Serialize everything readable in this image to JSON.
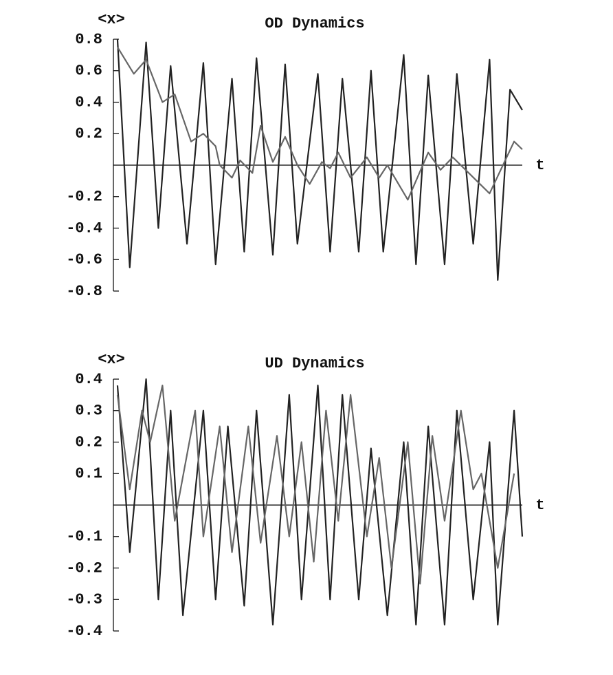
{
  "chart_data": [
    {
      "type": "line",
      "title": "OD Dynamics",
      "ylabel": "<x>",
      "xlabel": "t",
      "xlim": [
        0,
        100
      ],
      "ylim": [
        -0.8,
        0.8
      ],
      "yticks": [
        -0.8,
        -0.6,
        -0.4,
        -0.2,
        0.2,
        0.4,
        0.6,
        0.8
      ],
      "series": [
        {
          "color": "#222222",
          "x": [
            1,
            4,
            8,
            11,
            14,
            18,
            22,
            25,
            29,
            32,
            35,
            39,
            42,
            45,
            50,
            53,
            56,
            60,
            63,
            66,
            71,
            74,
            77,
            81,
            84,
            88,
            92,
            94,
            97,
            100
          ],
          "values": [
            0.8,
            -0.65,
            0.78,
            -0.4,
            0.63,
            -0.5,
            0.65,
            -0.63,
            0.55,
            -0.55,
            0.68,
            -0.57,
            0.64,
            -0.5,
            0.58,
            -0.55,
            0.55,
            -0.55,
            0.6,
            -0.55,
            0.7,
            -0.63,
            0.57,
            -0.63,
            0.58,
            -0.5,
            0.67,
            -0.73,
            0.48,
            0.35
          ]
        },
        {
          "color": "#666666",
          "x": [
            1,
            5,
            8,
            12,
            15,
            19,
            22,
            25,
            26,
            29,
            31,
            34,
            36,
            39,
            42,
            45,
            48,
            51,
            53,
            55,
            58,
            62,
            65,
            67,
            72,
            77,
            80,
            83,
            92,
            98,
            100
          ],
          "values": [
            0.75,
            0.58,
            0.67,
            0.4,
            0.45,
            0.15,
            0.2,
            0.12,
            0,
            -0.08,
            0.03,
            -0.05,
            0.25,
            0.02,
            0.18,
            0,
            -0.12,
            0.02,
            -0.02,
            0.08,
            -0.08,
            0.05,
            -0.08,
            0,
            -0.22,
            0.08,
            -0.03,
            0.05,
            -0.18,
            0.15,
            0.1
          ]
        }
      ]
    },
    {
      "type": "line",
      "title": "UD Dynamics",
      "ylabel": "<x>",
      "xlabel": "t",
      "xlim": [
        0,
        100
      ],
      "ylim": [
        -0.4,
        0.4
      ],
      "yticks": [
        -0.4,
        -0.3,
        -0.2,
        -0.1,
        0.1,
        0.2,
        0.3,
        0.4
      ],
      "series": [
        {
          "color": "#222222",
          "x": [
            1,
            4,
            8,
            11,
            14,
            17,
            22,
            25,
            28,
            32,
            35,
            39,
            43,
            46,
            50,
            53,
            56,
            60,
            63,
            67,
            71,
            74,
            77,
            81,
            84,
            88,
            92,
            94,
            98,
            100
          ],
          "values": [
            0.38,
            -0.15,
            0.4,
            -0.3,
            0.3,
            -0.35,
            0.3,
            -0.3,
            0.25,
            -0.32,
            0.3,
            -0.38,
            0.35,
            -0.3,
            0.38,
            -0.3,
            0.35,
            -0.3,
            0.18,
            -0.35,
            0.2,
            -0.38,
            0.25,
            -0.38,
            0.3,
            -0.3,
            0.2,
            -0.38,
            0.3,
            -0.1
          ]
        },
        {
          "color": "#666666",
          "x": [
            1,
            4,
            7,
            9,
            12,
            15,
            20,
            22,
            26,
            29,
            33,
            36,
            40,
            43,
            46,
            49,
            52,
            55,
            58,
            62,
            65,
            68,
            72,
            75,
            78,
            81,
            85,
            88,
            90,
            94,
            98
          ],
          "values": [
            0.35,
            0.05,
            0.3,
            0.2,
            0.38,
            -0.05,
            0.3,
            -0.1,
            0.25,
            -0.15,
            0.25,
            -0.12,
            0.22,
            -0.1,
            0.2,
            -0.18,
            0.3,
            -0.05,
            0.35,
            -0.1,
            0.15,
            -0.2,
            0.2,
            -0.25,
            0.22,
            -0.05,
            0.3,
            0.05,
            0.1,
            -0.2,
            0.1
          ]
        }
      ]
    }
  ]
}
